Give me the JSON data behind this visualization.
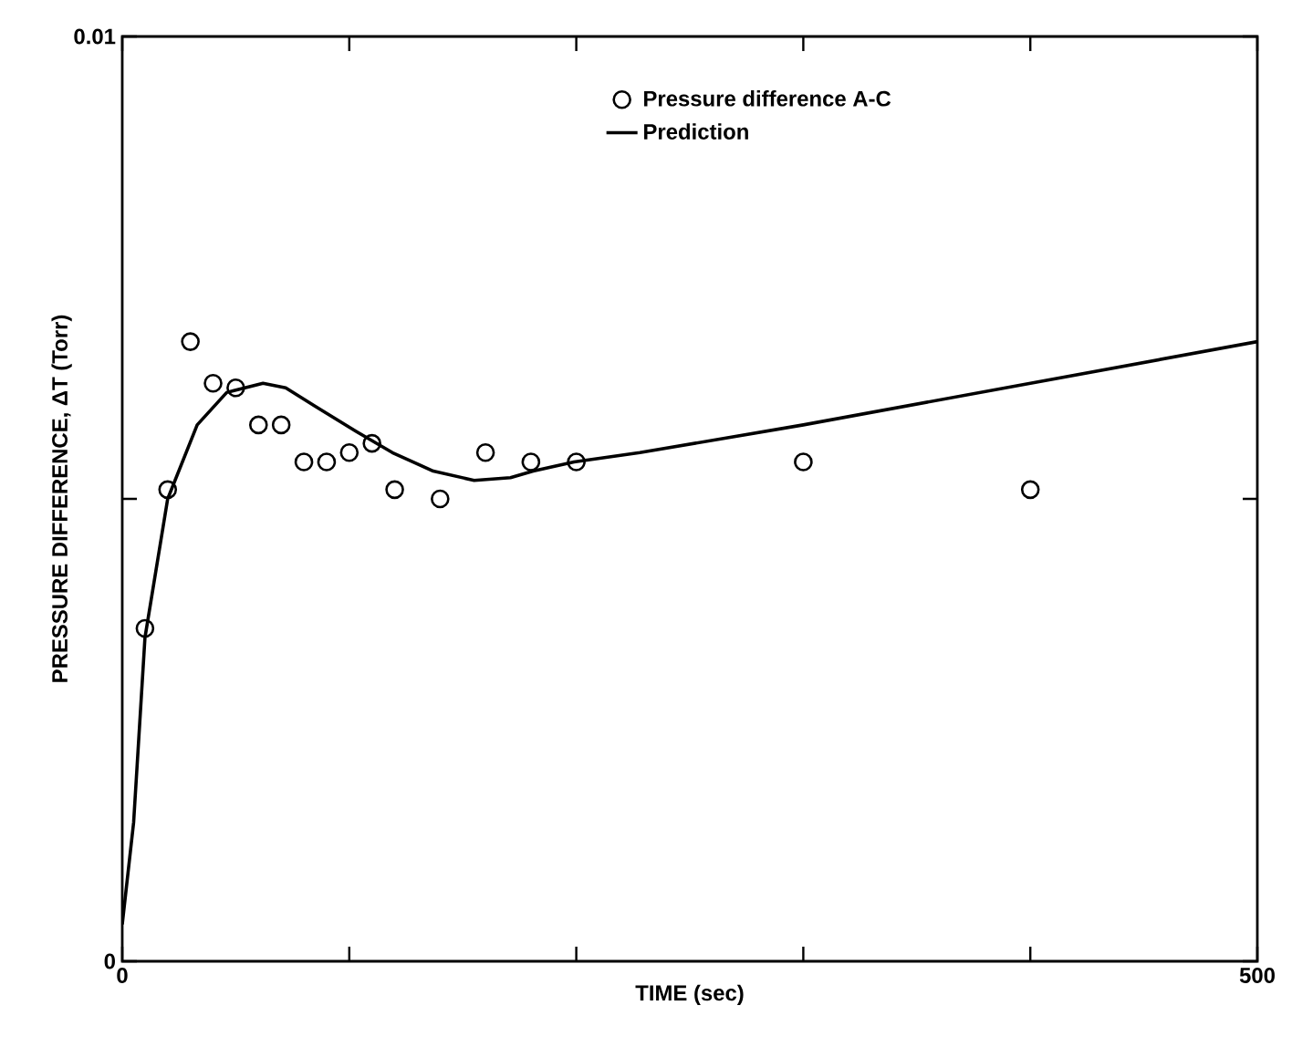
{
  "chart_data": {
    "type": "scatter",
    "xlabel": "TIME (sec)",
    "ylabel": "PRESSURE DIFFERENCE, ΔT (Torr)",
    "xlim": [
      0,
      500
    ],
    "ylim": [
      0,
      0.01
    ],
    "xticks": [
      0,
      {
        "value": 100,
        "label": null
      },
      {
        "value": 200,
        "label": null
      },
      {
        "value": 300,
        "label": null
      },
      {
        "value": 400,
        "label": null
      },
      500
    ],
    "yticks": [
      0,
      {
        "value": 0.005,
        "label": null
      },
      0.01
    ],
    "legend": "top right",
    "series": [
      {
        "name": "Pressure difference A-C",
        "marker": "circle",
        "color": "#000000",
        "x": [
          10,
          20,
          30,
          40,
          50,
          60,
          70,
          80,
          90,
          100,
          110,
          120,
          140,
          160,
          180,
          200,
          300,
          400
        ],
        "values": [
          0.0036,
          0.0051,
          0.0067,
          0.00625,
          0.0062,
          0.0058,
          0.0058,
          0.0054,
          0.0054,
          0.0055,
          0.0056,
          0.0051,
          0.005,
          0.0055,
          0.0054,
          0.0054,
          0.0054,
          0.0051
        ]
      },
      {
        "name": "Prediction",
        "type": "line",
        "marker": "none",
        "line_style": "solid",
        "color": "#000000",
        "x": [
          0,
          5,
          10,
          20,
          33,
          46,
          62,
          72,
          85,
          103,
          119,
          137,
          155,
          171,
          181,
          199,
          228,
          300,
          500
        ],
        "values": [
          0.0004,
          0.0015,
          0.0035,
          0.005,
          0.0058,
          0.00615,
          0.00625,
          0.0062,
          0.006,
          0.00573,
          0.0055,
          0.0053,
          0.0052,
          0.00523,
          0.0053,
          0.0054,
          0.0055,
          0.0058,
          0.0067
        ]
      }
    ]
  }
}
